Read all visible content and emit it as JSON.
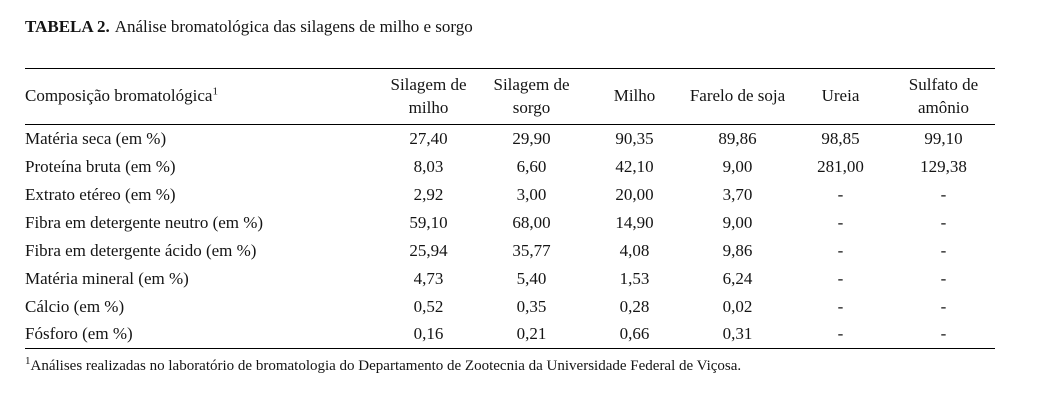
{
  "title": {
    "label": "TABELA 2.",
    "text": "Análise bromatológica das silagens de milho e sorgo"
  },
  "table": {
    "row_header": {
      "text": "Composição bromatológica",
      "superscript": "1"
    },
    "columns": [
      "Silagem de milho",
      "Silagem de sorgo",
      "Milho",
      "Farelo de soja",
      "Ureia",
      "Sulfato de amônio"
    ],
    "rows": [
      {
        "label": "Matéria seca (em %)",
        "values": [
          "27,40",
          "29,90",
          "90,35",
          "89,86",
          "98,85",
          "99,10"
        ]
      },
      {
        "label": "Proteína bruta (em %)",
        "values": [
          "8,03",
          "6,60",
          "42,10",
          "9,00",
          "281,00",
          "129,38"
        ]
      },
      {
        "label": "Extrato etéreo (em %)",
        "values": [
          "2,92",
          "3,00",
          "20,00",
          "3,70",
          "-",
          "-"
        ]
      },
      {
        "label": "Fibra em detergente neutro (em %)",
        "values": [
          "59,10",
          "68,00",
          "14,90",
          "9,00",
          "-",
          "-"
        ]
      },
      {
        "label": "Fibra em detergente ácido (em %)",
        "values": [
          "25,94",
          "35,77",
          "4,08",
          "9,86",
          "-",
          "-"
        ]
      },
      {
        "label": "Matéria mineral (em %)",
        "values": [
          "4,73",
          "5,40",
          "1,53",
          "6,24",
          "-",
          "-"
        ]
      },
      {
        "label": "Cálcio (em %)",
        "values": [
          "0,52",
          "0,35",
          "0,28",
          "0,02",
          "-",
          "-"
        ]
      },
      {
        "label": "Fósforo (em %)",
        "values": [
          "0,16",
          "0,21",
          "0,66",
          "0,31",
          "-",
          "-"
        ]
      }
    ]
  },
  "footnote": {
    "superscript": "1",
    "text": "Análises realizadas no laboratório de bromatologia do Departamento de Zootecnia da Universidade Federal de Viçosa."
  }
}
